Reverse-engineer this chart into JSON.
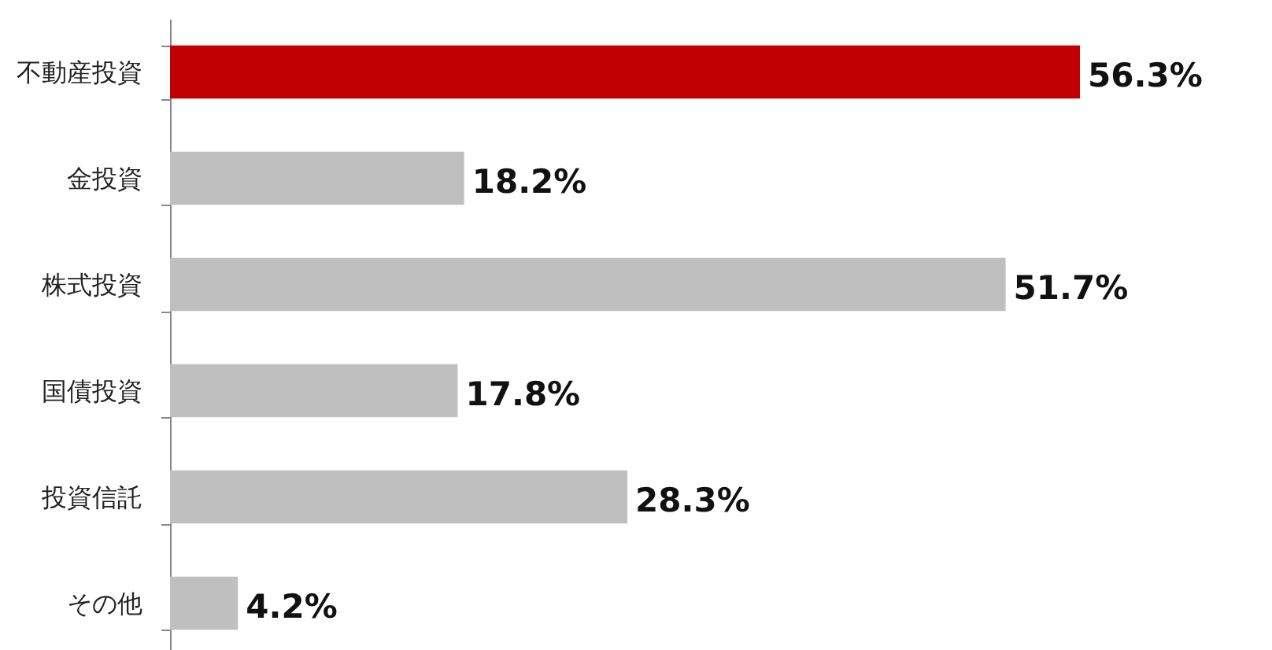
{
  "chart_data": {
    "type": "bar",
    "orientation": "horizontal",
    "categories": [
      "不動産投資",
      "金投資",
      "株式投資",
      "国債投資",
      "投資信託",
      "その他"
    ],
    "values": [
      56.3,
      18.2,
      51.7,
      17.8,
      28.3,
      4.2
    ],
    "colors": [
      "#c00000",
      "#bfbfbf",
      "#bfbfbf",
      "#bfbfbf",
      "#bfbfbf",
      "#bfbfbf"
    ],
    "value_labels": [
      "56.3%",
      "18.2%",
      "51.7%",
      "17.8%",
      "28.3%",
      "4.2%"
    ]
  }
}
